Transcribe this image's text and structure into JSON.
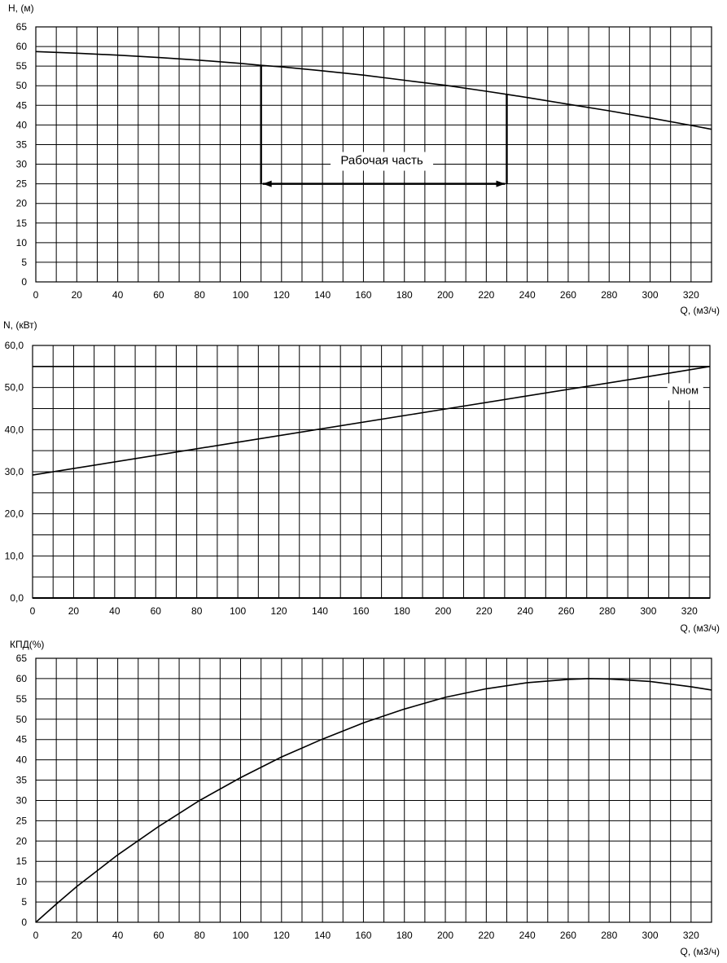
{
  "chart_data": [
    {
      "type": "line",
      "ylabel": "H, (м)",
      "xlabel": "Q, (м3/ч)",
      "xlim": [
        0,
        330
      ],
      "ylim": [
        0,
        65
      ],
      "x_ticks": [
        "0",
        "20",
        "40",
        "60",
        "80",
        "100",
        "120",
        "140",
        "160",
        "180",
        "200",
        "220",
        "240",
        "260",
        "280",
        "300",
        "320"
      ],
      "y_ticks": [
        "0",
        "5",
        "10",
        "15",
        "20",
        "25",
        "30",
        "35",
        "40",
        "45",
        "50",
        "55",
        "60",
        "65"
      ],
      "grid": true,
      "series": [
        {
          "x": [
            0,
            20,
            40,
            60,
            80,
            100,
            110,
            120,
            140,
            160,
            180,
            200,
            220,
            230,
            240,
            260,
            280,
            300,
            320,
            330
          ],
          "y": [
            58.7,
            58.3,
            57.8,
            57.2,
            56.5,
            55.7,
            55.2,
            54.8,
            53.8,
            52.7,
            51.4,
            50.1,
            48.6,
            47.8,
            47.0,
            45.3,
            43.6,
            41.8,
            39.9,
            38.9
          ]
        }
      ],
      "annotations": [
        {
          "text": "Рабочая часть",
          "x": 169,
          "y": 30
        }
      ],
      "working_range": {
        "x_start": 110,
        "x_end": 230,
        "arrow_y": 25
      }
    },
    {
      "type": "line",
      "ylabel": "N, (кВт)",
      "xlabel": "Q, (м3/ч)",
      "xlim": [
        0,
        330
      ],
      "ylim": [
        0,
        60
      ],
      "x_ticks": [
        "0",
        "20",
        "40",
        "60",
        "80",
        "100",
        "120",
        "140",
        "160",
        "180",
        "200",
        "220",
        "240",
        "260",
        "280",
        "300",
        "320"
      ],
      "y_ticks": [
        "0,0",
        "10,0",
        "20,0",
        "30,0",
        "40,0",
        "50,0",
        "60,0"
      ],
      "grid": true,
      "series": [
        {
          "x": [
            0,
            100,
            200,
            300,
            330
          ],
          "y": [
            29.2,
            37.0,
            44.8,
            52.6,
            55.0
          ]
        },
        {
          "x": [
            0,
            330
          ],
          "y": [
            55.0,
            55.0
          ]
        }
      ],
      "annotations": [
        {
          "text": "Nном",
          "x": 318,
          "y": 48.5
        }
      ]
    },
    {
      "type": "line",
      "ylabel": "КПД(%)",
      "xlabel": "Q, (м3/ч)",
      "xlim": [
        0,
        330
      ],
      "ylim": [
        0,
        65
      ],
      "x_ticks": [
        "0",
        "20",
        "40",
        "60",
        "80",
        "100",
        "120",
        "140",
        "160",
        "180",
        "200",
        "220",
        "240",
        "260",
        "280",
        "300",
        "320"
      ],
      "y_ticks": [
        "0",
        "5",
        "10",
        "15",
        "20",
        "25",
        "30",
        "35",
        "40",
        "45",
        "50",
        "55",
        "60",
        "65"
      ],
      "grid": true,
      "series": [
        {
          "x": [
            0,
            10,
            20,
            40,
            60,
            80,
            100,
            120,
            140,
            160,
            180,
            200,
            220,
            240,
            260,
            270,
            280,
            300,
            320,
            330
          ],
          "y": [
            0,
            4.5,
            8.8,
            16.6,
            23.6,
            30.0,
            35.6,
            40.7,
            45.1,
            49.1,
            52.5,
            55.4,
            57.5,
            59.0,
            59.8,
            60.0,
            59.9,
            59.3,
            58.0,
            57.2
          ]
        }
      ]
    }
  ]
}
